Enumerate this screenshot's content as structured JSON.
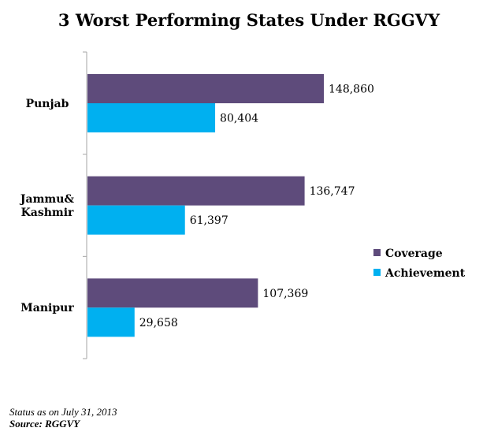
{
  "chart_data": {
    "type": "bar",
    "orientation": "horizontal",
    "title": "3 Worst Performing States Under RGGVY",
    "categories": [
      [
        "Punjab"
      ],
      [
        "Jammu&",
        "Kashmir"
      ],
      [
        "Manipur"
      ]
    ],
    "series": [
      {
        "name": "Coverage",
        "color": "#5e4b7b",
        "values": [
          148860,
          136747,
          107369
        ],
        "labels": [
          "148,860",
          "136,747",
          "107,369"
        ]
      },
      {
        "name": "Achievement",
        "color": "#00b0f0",
        "values": [
          80404,
          61397,
          29658
        ],
        "labels": [
          "80,404",
          "61,397",
          "29,658"
        ]
      }
    ],
    "xlim": [
      0,
      160000
    ],
    "grid": false,
    "legend_position": "right"
  },
  "footnotes": {
    "status": "Status as on July 31, 2013",
    "source": "Source: RGGVY"
  }
}
